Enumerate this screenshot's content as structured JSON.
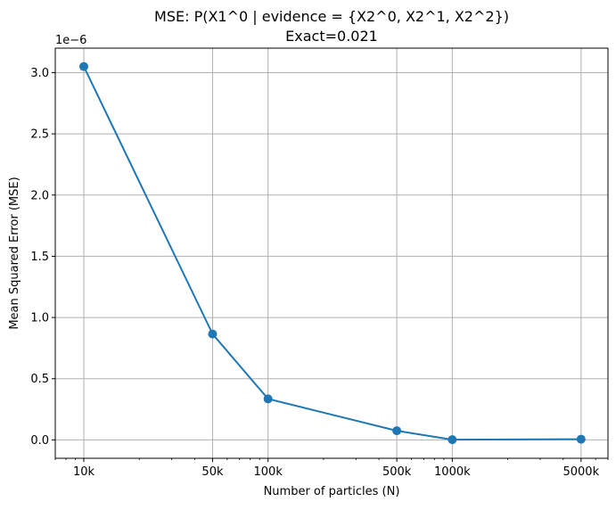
{
  "chart_data": {
    "type": "line",
    "title": "MSE: P(X1^0 | evidence = {X2^0, X2^1, X2^2})",
    "subtitle": "Exact=0.021",
    "xlabel": "Number of particles (N)",
    "ylabel": "Mean Squared Error (MSE)",
    "x_scale": "log",
    "y_scale_factor_label": "1e−6",
    "x": [
      10000,
      50000,
      100000,
      500000,
      1000000,
      5000000
    ],
    "x_tick_labels": [
      "10k",
      "50k",
      "100k",
      "500k",
      "1000k",
      "5000k"
    ],
    "series": [
      {
        "values": [
          3.05e-06,
          8.65e-07,
          3.35e-07,
          7.5e-08,
          2e-09,
          6e-09
        ]
      }
    ],
    "y_ticks": [
      0.0,
      0.5,
      1.0,
      1.5,
      2.0,
      2.5,
      3.0
    ],
    "y_tick_labels": [
      "0.0",
      "0.5",
      "1.0",
      "1.5",
      "2.0",
      "2.5",
      "3.0"
    ],
    "ylim": [
      -1.5e-07,
      3.2e-06
    ],
    "grid": true,
    "colors": {
      "line": "#1f77b4",
      "grid": "#b0b0b0",
      "axes": "#000000"
    }
  }
}
